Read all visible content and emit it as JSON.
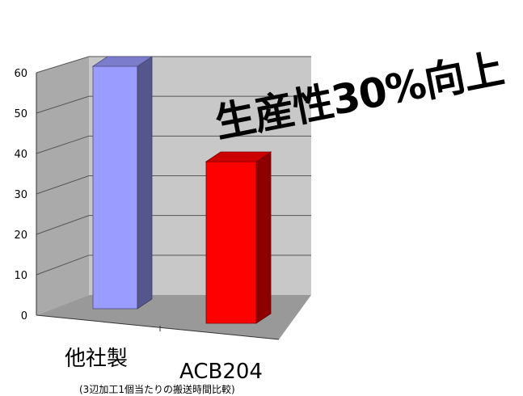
{
  "chart_data": {
    "type": "bar",
    "style": "3d",
    "categories": [
      "他社製",
      "ACB204"
    ],
    "values": [
      60,
      40
    ],
    "colors": [
      "#9a9cff",
      "#ff0000"
    ],
    "ylim": [
      0,
      60
    ],
    "yticks": [
      0,
      10,
      20,
      30,
      40,
      50,
      60
    ],
    "grid": true,
    "annotation": "生産性30%向上",
    "footnote": "(3辺加工1個当たりの搬送時間比較)"
  }
}
